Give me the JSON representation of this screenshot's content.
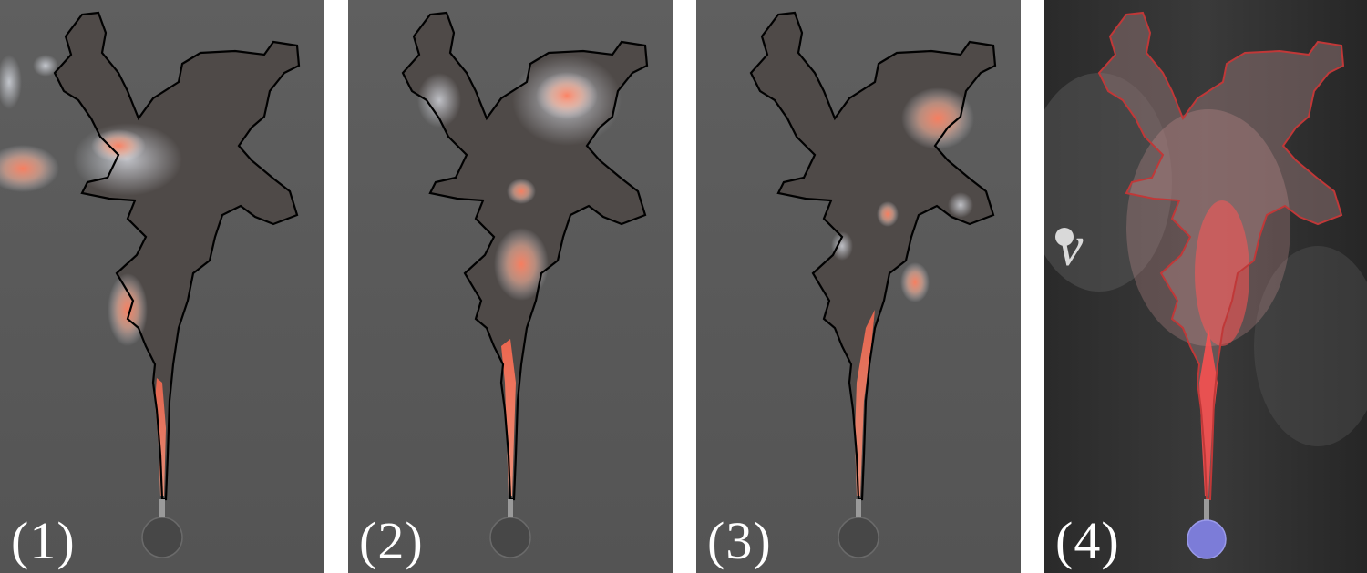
{
  "panels": [
    {
      "label": "(1)"
    },
    {
      "label": "(2)"
    },
    {
      "label": "(3)"
    },
    {
      "label": "(4)"
    }
  ],
  "panel4_symbol": "v",
  "colors": {
    "background_gray": "#5a5a5a",
    "outline": "#000000",
    "hot": "#ff8a6a",
    "plume_red": "#ff4f4f",
    "source_blue": "#7a7ad8"
  }
}
